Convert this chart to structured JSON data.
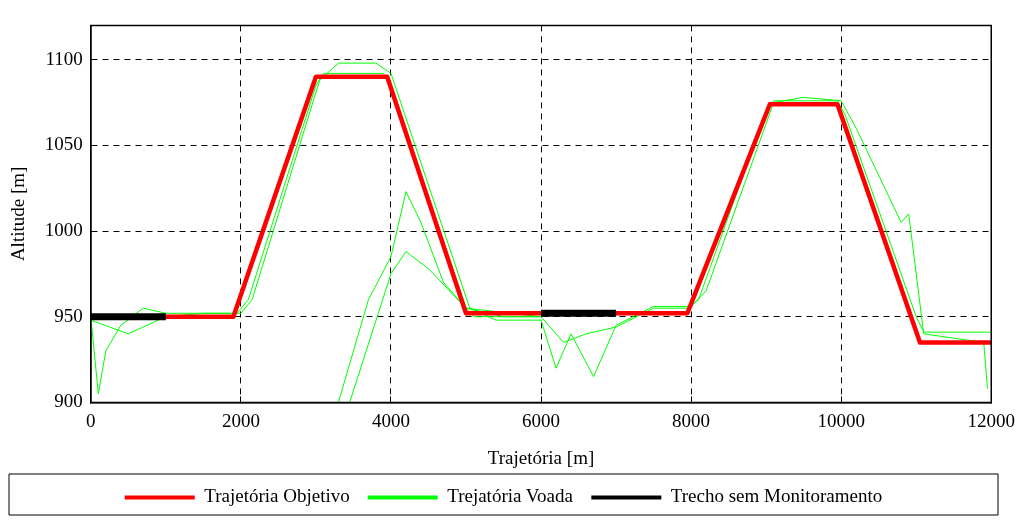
{
  "chart_data": {
    "type": "line",
    "xlabel": "Trajetória [m]",
    "ylabel": "Altitude [m]",
    "xlim": [
      0,
      12000
    ],
    "xticks": [
      0,
      2000,
      4000,
      6000,
      8000,
      10000,
      12000
    ],
    "ylim": [
      900,
      1120
    ],
    "yticks": [
      900,
      950,
      1000,
      1050,
      1100
    ],
    "grid": true,
    "legend": "bottom",
    "marker": "none",
    "line_style": "solid",
    "series": [
      {
        "name": "Trejatória Voada",
        "color": "#00ff00",
        "x": [
          0,
          500,
          1000,
          1500,
          1950,
          2100,
          3000,
          3100,
          3900,
          4000,
          5000,
          5100,
          6000,
          6300,
          6600,
          7000,
          7500,
          7950,
          8100,
          9000,
          9100,
          9950,
          10050,
          11000,
          11100,
          12000
        ],
        "values": [
          948,
          940,
          950,
          952,
          952,
          960,
          1085,
          1092,
          1092,
          1085,
          955,
          950,
          950,
          935,
          940,
          944,
          955,
          955,
          960,
          1070,
          1076,
          1076,
          1068,
          950,
          941,
          941
        ]
      },
      {
        "color": "#00ff00",
        "x": [
          0,
          100,
          200,
          400,
          700,
          1000,
          2000,
          2150,
          3050,
          3300,
          3800,
          4000,
          5050,
          5400,
          6000,
          6200,
          6400,
          6700,
          7000,
          7500,
          8000,
          8200,
          9100,
          9500,
          10000,
          10200,
          10800,
          10900,
          11100,
          11900,
          11950
        ],
        "values": [
          950,
          905,
          930,
          945,
          955,
          952,
          952,
          960,
          1088,
          1098,
          1098,
          1092,
          955,
          948,
          948,
          920,
          940,
          915,
          945,
          956,
          956,
          965,
          1075,
          1078,
          1076,
          1060,
          1005,
          1010,
          940,
          935,
          908
        ]
      },
      {
        "color": "#00ff00",
        "x": [
          3300,
          3700,
          4000,
          4200,
          4400,
          4700,
          5000,
          5500,
          6000
        ],
        "values": [
          900,
          960,
          985,
          1023,
          1005,
          970,
          955,
          950,
          950
        ]
      },
      {
        "color": "#00ff00",
        "x": [
          3450,
          4000,
          4200,
          4500,
          5000,
          6000
        ],
        "values": [
          900,
          975,
          988,
          978,
          955,
          950
        ]
      },
      {
        "name": "Trajetória Objetivo",
        "color": "#ff0000",
        "x": [
          0,
          1900,
          3000,
          3950,
          5000,
          7950,
          9050,
          9950,
          11050,
          12000
        ],
        "values": [
          950,
          950,
          1090,
          1090,
          952,
          952,
          1074,
          1074,
          935,
          935
        ]
      },
      {
        "name": "Trecho sem Monitoramento",
        "color": "#000000",
        "x": [
          0,
          1000
        ],
        "values": [
          950,
          950
        ]
      },
      {
        "color": "#000000",
        "x": [
          6000,
          7000
        ],
        "values": [
          952,
          952
        ]
      }
    ]
  }
}
